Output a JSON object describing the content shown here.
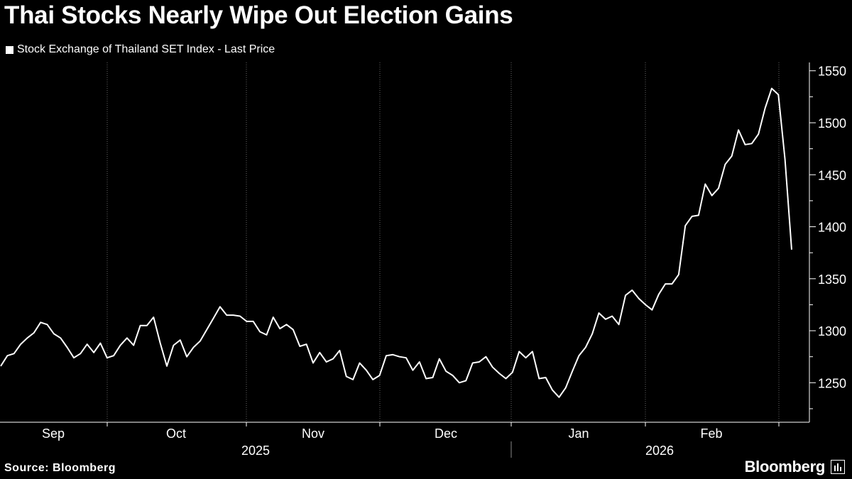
{
  "title": "Thai Stocks Nearly Wipe Out Election Gains",
  "source": "Source: Bloomberg",
  "brand": "Bloomberg",
  "colors": {
    "background": "#000000",
    "line": "#ffffff",
    "grid": "#666666",
    "text": "#ffffff"
  },
  "chart_data": {
    "type": "line",
    "title": "Thai Stocks Nearly Wipe Out Election Gains",
    "ylim": [
      1212,
      1558
    ],
    "yticks": [
      1250,
      1300,
      1350,
      1400,
      1450,
      1500,
      1550
    ],
    "y_axis_side": "right",
    "grid": "vertical dotted at month boundaries",
    "legend_position": "top-left",
    "x_month_labels": [
      "Sep",
      "Oct",
      "Nov",
      "Dec",
      "Jan",
      "Feb"
    ],
    "x_year_labels": [
      "2025",
      "2026"
    ],
    "series": [
      {
        "name": "Stock Exchange of Thailand SET Index - Last Price",
        "values": [
          1266,
          1276,
          1278,
          1287,
          1293,
          1298,
          1308,
          1306,
          1297,
          1293,
          1284,
          1274,
          1278,
          1287,
          1279,
          1288,
          1274,
          1276,
          1286,
          1293,
          1286,
          1305,
          1305,
          1313,
          1288,
          1266,
          1286,
          1291,
          1275,
          1284,
          1290,
          1301,
          1312,
          1323,
          1315,
          1315,
          1314,
          1309,
          1309,
          1299,
          1296,
          1313,
          1302,
          1306,
          1301,
          1285,
          1287,
          1269,
          1279,
          1270,
          1273,
          1281,
          1256,
          1253,
          1269,
          1262,
          1253,
          1257,
          1276,
          1277,
          1275,
          1274,
          1262,
          1270,
          1254,
          1255,
          1273,
          1261,
          1257,
          1250,
          1252,
          1269,
          1270,
          1275,
          1265,
          1259,
          1254,
          1260,
          1280,
          1274,
          1280,
          1254,
          1255,
          1243,
          1236,
          1245,
          1261,
          1276,
          1284,
          1297,
          1317,
          1311,
          1314,
          1306,
          1334,
          1339,
          1331,
          1325,
          1320,
          1335,
          1345,
          1345,
          1354,
          1401,
          1410,
          1411,
          1441,
          1430,
          1437,
          1460,
          1468,
          1493,
          1479,
          1480,
          1489,
          1514,
          1533,
          1527,
          1465,
          1378
        ]
      }
    ]
  }
}
